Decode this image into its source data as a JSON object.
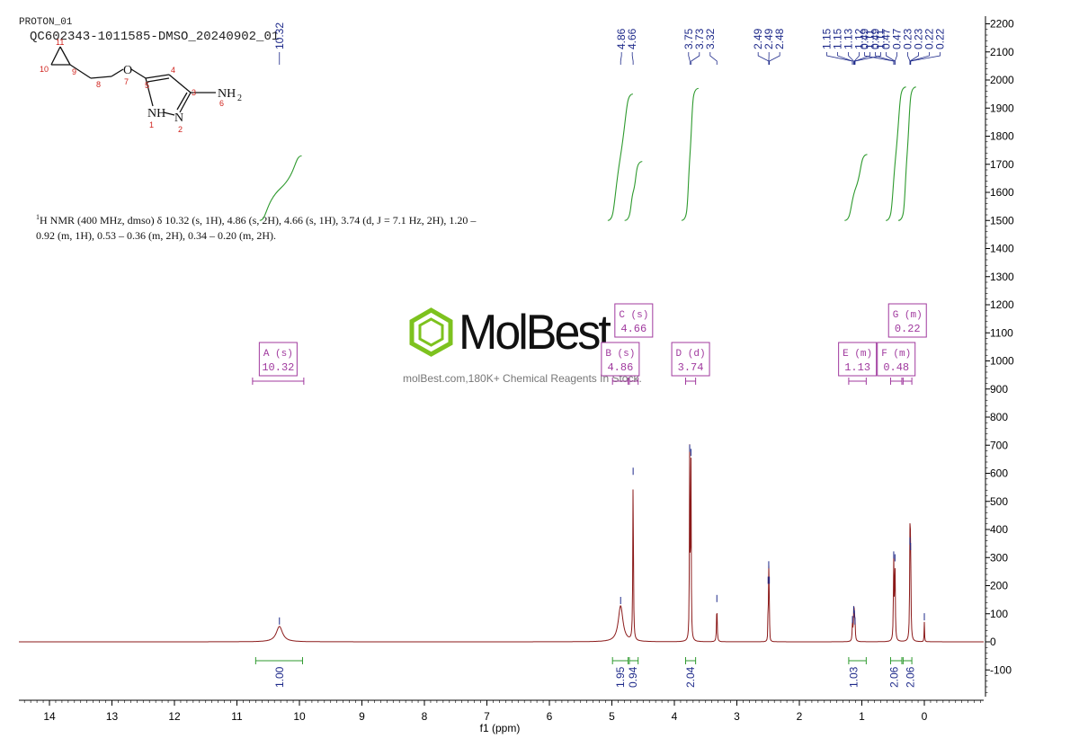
{
  "header": {
    "program": "PROTON_01",
    "sample_id": "QC602343-1011585-DMSO_20240902_01"
  },
  "structure": {
    "atoms": [
      "O",
      "NH",
      "N",
      "NH2"
    ],
    "numbers": [
      "1",
      "2",
      "3",
      "4",
      "5",
      "6",
      "7",
      "8",
      "9",
      "10",
      "11"
    ]
  },
  "nmr_summary": {
    "line1": "H NMR (400 MHz, dmso) δ 10.32 (s, 1H), 4.86 (s, 2H), 4.66 (s, 1H), 3.74 (d, J = 7.1 Hz, 2H), 1.20 –",
    "line2": "0.92 (m, 1H), 0.53 – 0.36 (m, 2H), 0.34 – 0.20 (m, 2H).",
    "superscript": "1"
  },
  "watermark": {
    "brand": "MolBest",
    "tagline": "molBest.com,180K+ Chemical Reagents In Stock.",
    "color": "#7dc21e"
  },
  "colors": {
    "spectrum": "#8b1a1a",
    "integral_curve": "#2e9a2e",
    "peak_label": "#1e2a8a",
    "multiplet": "#a0399e",
    "axis": "#000000"
  },
  "chart_data": {
    "type": "line",
    "xlabel": "f1 (ppm)",
    "x_ticks": [
      14,
      13,
      12,
      11,
      10,
      9,
      8,
      7,
      6,
      5,
      4,
      3,
      2,
      1,
      0
    ],
    "xlim": [
      14.5,
      -0.95
    ],
    "y_ticks": [
      2200,
      2100,
      2000,
      1900,
      1800,
      1700,
      1600,
      1500,
      1400,
      1300,
      1200,
      1100,
      1000,
      900,
      800,
      700,
      600,
      500,
      400,
      300,
      200,
      100,
      0,
      -100
    ],
    "ylim": [
      -210,
      2230
    ],
    "peaks": [
      {
        "ppm": 10.32,
        "height": 55,
        "width": 0.06
      },
      {
        "ppm": 4.86,
        "height": 128,
        "width": 0.045
      },
      {
        "ppm": 4.66,
        "height": 588,
        "width": 0.006
      },
      {
        "ppm": 3.755,
        "height": 670,
        "width": 0.005
      },
      {
        "ppm": 3.735,
        "height": 655,
        "width": 0.005
      },
      {
        "ppm": 3.32,
        "height": 135,
        "width": 0.006
      },
      {
        "ppm": 2.5,
        "height": 200,
        "width": 0.003
      },
      {
        "ppm": 2.49,
        "height": 255,
        "width": 0.003
      },
      {
        "ppm": 2.48,
        "height": 200,
        "width": 0.003
      },
      {
        "ppm": 1.15,
        "height": 60,
        "width": 0.006
      },
      {
        "ppm": 1.13,
        "height": 95,
        "width": 0.006
      },
      {
        "ppm": 1.12,
        "height": 80,
        "width": 0.006
      },
      {
        "ppm": 1.11,
        "height": 55,
        "width": 0.006
      },
      {
        "ppm": 0.49,
        "height": 290,
        "width": 0.006
      },
      {
        "ppm": 0.47,
        "height": 280,
        "width": 0.006
      },
      {
        "ppm": 0.23,
        "height": 340,
        "width": 0.006
      },
      {
        "ppm": 0.22,
        "height": 320,
        "width": 0.006
      },
      {
        "ppm": 0.0,
        "height": 70,
        "width": 0.004
      }
    ],
    "peak_labels": [
      {
        "group": [
          10.32
        ],
        "labels": [
          "10.32"
        ]
      },
      {
        "group": [
          4.86,
          4.66
        ],
        "labels": [
          "4.86",
          "4.66"
        ]
      },
      {
        "group": [
          3.75,
          3.73,
          3.32
        ],
        "labels": [
          "3.75",
          "3.73",
          "3.32"
        ]
      },
      {
        "group": [
          2.49,
          2.49,
          2.48
        ],
        "labels": [
          "2.49",
          "2.49",
          "2.48"
        ]
      },
      {
        "group": [
          1.15,
          1.15,
          1.13,
          1.12,
          1.11,
          1.11
        ],
        "labels": [
          "1.15",
          "1.15",
          "1.13",
          "1.12",
          "1.11",
          "1.11"
        ]
      },
      {
        "group": [
          0.49,
          0.49,
          0.47,
          0.47,
          0.23,
          0.23,
          0.22,
          0.22
        ],
        "labels": [
          "0.49",
          "0.49",
          "0.47",
          "0.47",
          "0.23",
          "0.23",
          "0.22",
          "0.22"
        ]
      }
    ],
    "integrals": [
      {
        "ppm": 10.32,
        "value": "1.00",
        "from": 10.7,
        "to": 9.95
      },
      {
        "ppm": 4.86,
        "value": "1.95",
        "from": 4.99,
        "to": 4.74
      },
      {
        "ppm": 4.66,
        "value": "0.94",
        "from": 4.72,
        "to": 4.58
      },
      {
        "ppm": 3.74,
        "value": "2.04",
        "from": 3.82,
        "to": 3.66
      },
      {
        "ppm": 1.13,
        "value": "1.03",
        "from": 1.21,
        "to": 0.93
      },
      {
        "ppm": 0.48,
        "value": "2.06",
        "from": 0.54,
        "to": 0.36
      },
      {
        "ppm": 0.22,
        "value": "2.06",
        "from": 0.34,
        "to": 0.2
      }
    ],
    "multiplets": [
      {
        "id": "A",
        "type": "s",
        "shift": "10.32",
        "from": 10.75,
        "to": 9.93,
        "row": "low"
      },
      {
        "id": "B",
        "type": "s",
        "shift": "4.86",
        "from": 4.99,
        "to": 4.74,
        "row": "low"
      },
      {
        "id": "C",
        "type": "s",
        "shift": "4.66",
        "from": 4.72,
        "to": 4.58,
        "row": "high"
      },
      {
        "id": "D",
        "type": "d",
        "shift": "3.74",
        "from": 3.82,
        "to": 3.66,
        "row": "low"
      },
      {
        "id": "E",
        "type": "m",
        "shift": "1.13",
        "from": 1.21,
        "to": 0.93,
        "row": "low"
      },
      {
        "id": "F",
        "type": "m",
        "shift": "0.48",
        "from": 0.54,
        "to": 0.36,
        "row": "low"
      },
      {
        "id": "G",
        "type": "m",
        "shift": "0.22",
        "from": 0.34,
        "to": 0.2,
        "row": "high"
      }
    ],
    "integral_curves": [
      {
        "from": 10.55,
        "to": 10.05,
        "rise_value": 1730,
        "start_value": 1500
      },
      {
        "from": 4.98,
        "to": 4.75,
        "rise_value": 1950,
        "start_value": 1500
      },
      {
        "from": 4.71,
        "to": 4.6,
        "rise_value": 1710,
        "start_value": 1500
      },
      {
        "from": 3.8,
        "to": 3.7,
        "rise_value": 1970,
        "start_value": 1500
      },
      {
        "from": 1.19,
        "to": 1.0,
        "rise_value": 1735,
        "start_value": 1500
      },
      {
        "from": 0.53,
        "to": 0.38,
        "rise_value": 1975,
        "start_value": 1500
      },
      {
        "from": 0.33,
        "to": 0.22,
        "rise_value": 1975,
        "start_value": 1500
      }
    ]
  }
}
